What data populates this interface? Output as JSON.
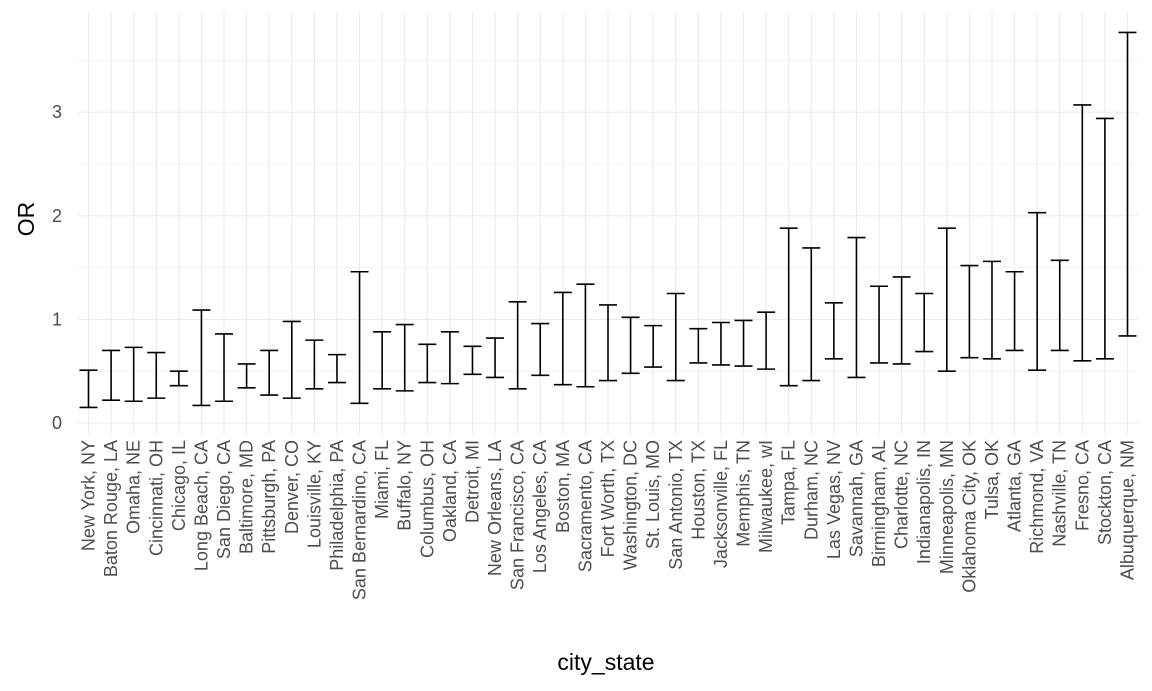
{
  "chart_data": {
    "type": "errorbar",
    "xlabel": "city_state",
    "ylabel": "OR",
    "ylim": [
      0,
      3.9
    ],
    "yticks": [
      0,
      1,
      2,
      3
    ],
    "grid": true,
    "categories": [
      "New York, NY",
      "Baton Rouge, LA",
      "Omaha, NE",
      "Cincinnati, OH",
      "Chicago, IL",
      "Long Beach, CA",
      "San Diego, CA",
      "Baltimore, MD",
      "Pittsburgh, PA",
      "Denver, CO",
      "Louisville, KY",
      "Philadelphia, PA",
      "San Bernardino, CA",
      "Miami, FL",
      "Buffalo, NY",
      "Columbus, OH",
      "Oakland, CA",
      "Detroit, MI",
      "New Orleans, LA",
      "San Francisco, CA",
      "Los Angeles, CA",
      "Boston, MA",
      "Sacramento, CA",
      "Fort Worth, TX",
      "Washington, DC",
      "St. Louis, MO",
      "San Antonio, TX",
      "Houston, TX",
      "Jacksonville, FL",
      "Memphis, TN",
      "Milwaukee, wI",
      "Tampa, FL",
      "Durham, NC",
      "Las Vegas, NV",
      "Savannah, GA",
      "Birmingham, AL",
      "Charlotte, NC",
      "Indianapolis, IN",
      "Minneapolis, MN",
      "Oklahoma City, OK",
      "Tulsa, OK",
      "Atlanta, GA",
      "Richmond, VA",
      "Nashville, TN",
      "Fresno, CA",
      "Stockton, CA",
      "Albuquerque, NM"
    ],
    "lower": [
      0.15,
      0.22,
      0.21,
      0.24,
      0.36,
      0.17,
      0.21,
      0.34,
      0.27,
      0.24,
      0.33,
      0.39,
      0.19,
      0.33,
      0.31,
      0.39,
      0.38,
      0.47,
      0.44,
      0.33,
      0.46,
      0.37,
      0.35,
      0.41,
      0.48,
      0.54,
      0.41,
      0.58,
      0.56,
      0.55,
      0.52,
      0.36,
      0.41,
      0.62,
      0.44,
      0.58,
      0.57,
      0.69,
      0.5,
      0.63,
      0.62,
      0.7,
      0.51,
      0.7,
      0.6,
      0.62,
      0.84
    ],
    "upper": [
      0.51,
      0.7,
      0.73,
      0.68,
      0.5,
      1.09,
      0.86,
      0.57,
      0.7,
      0.98,
      0.8,
      0.66,
      1.46,
      0.88,
      0.95,
      0.76,
      0.88,
      0.74,
      0.82,
      1.17,
      0.96,
      1.26,
      1.34,
      1.14,
      1.02,
      0.94,
      1.25,
      0.91,
      0.97,
      0.99,
      1.07,
      1.88,
      1.69,
      1.16,
      1.79,
      1.32,
      1.41,
      1.25,
      1.88,
      1.52,
      1.56,
      1.46,
      2.03,
      1.57,
      3.07,
      2.94,
      3.77
    ]
  }
}
